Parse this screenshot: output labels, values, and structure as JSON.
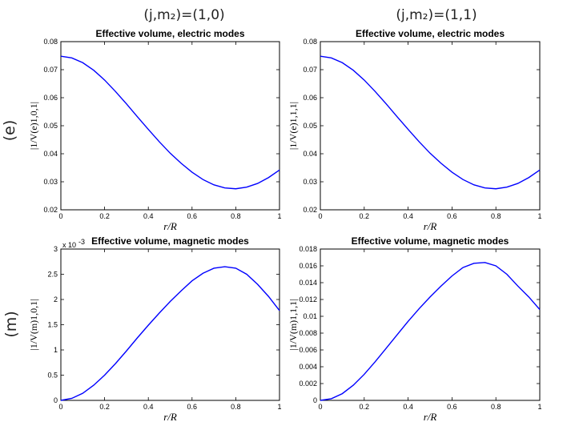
{
  "column_headers": [
    "(j,m₂)=(1,0)",
    "(j,m₂)=(1,1)"
  ],
  "row_labels": [
    "(e)",
    "(m)"
  ],
  "chart_data": [
    {
      "type": "line",
      "title": "Effective volume, electric modes",
      "xlabel": "r/R",
      "ylabel": "|1/V(e)1,0,1|",
      "xlim": [
        0,
        1
      ],
      "ylim": [
        0.02,
        0.08
      ],
      "xticks": [
        0,
        0.2,
        0.4,
        0.6,
        0.8,
        1
      ],
      "yticks": [
        0.02,
        0.03,
        0.04,
        0.05,
        0.06,
        0.07,
        0.08
      ],
      "x": [
        0,
        0.05,
        0.1,
        0.15,
        0.2,
        0.25,
        0.3,
        0.35,
        0.4,
        0.45,
        0.5,
        0.55,
        0.6,
        0.65,
        0.7,
        0.75,
        0.8,
        0.85,
        0.9,
        0.95,
        1.0
      ],
      "y": [
        0.0748,
        0.0742,
        0.0725,
        0.0698,
        0.0663,
        0.0622,
        0.0578,
        0.0532,
        0.0487,
        0.0443,
        0.0402,
        0.0366,
        0.0334,
        0.0308,
        0.0289,
        0.0278,
        0.0275,
        0.0281,
        0.0294,
        0.0315,
        0.0342
      ]
    },
    {
      "type": "line",
      "title": "Effective volume, electric modes",
      "xlabel": "r/R",
      "ylabel": "|1/V(e)1,1,1|",
      "xlim": [
        0,
        1
      ],
      "ylim": [
        0.02,
        0.08
      ],
      "xticks": [
        0,
        0.2,
        0.4,
        0.6,
        0.8,
        1
      ],
      "yticks": [
        0.02,
        0.03,
        0.04,
        0.05,
        0.06,
        0.07,
        0.08
      ],
      "x": [
        0,
        0.05,
        0.1,
        0.15,
        0.2,
        0.25,
        0.3,
        0.35,
        0.4,
        0.45,
        0.5,
        0.55,
        0.6,
        0.65,
        0.7,
        0.75,
        0.8,
        0.85,
        0.9,
        0.95,
        1.0
      ],
      "y": [
        0.0748,
        0.0742,
        0.0725,
        0.0698,
        0.0663,
        0.0622,
        0.0578,
        0.0532,
        0.0487,
        0.0443,
        0.0402,
        0.0366,
        0.0334,
        0.0308,
        0.0289,
        0.0278,
        0.0275,
        0.0281,
        0.0294,
        0.0315,
        0.0342
      ]
    },
    {
      "type": "line",
      "title": "Effective volume, magnetic modes",
      "xlabel": "r/R",
      "ylabel": "|1/V(m)1,0,1|",
      "xlim": [
        0,
        1
      ],
      "ylim": [
        0,
        3
      ],
      "xticks": [
        0,
        0.2,
        0.4,
        0.6,
        0.8,
        1
      ],
      "yticks": [
        0,
        0.5,
        1,
        1.5,
        2,
        2.5,
        3
      ],
      "y_multiplier": "x 10",
      "y_exponent": "-3",
      "x": [
        0,
        0.05,
        0.1,
        0.15,
        0.2,
        0.25,
        0.3,
        0.35,
        0.4,
        0.45,
        0.5,
        0.55,
        0.6,
        0.65,
        0.7,
        0.75,
        0.8,
        0.85,
        0.9,
        0.95,
        1.0
      ],
      "y": [
        0,
        0.04,
        0.14,
        0.3,
        0.5,
        0.73,
        0.98,
        1.24,
        1.49,
        1.73,
        1.96,
        2.17,
        2.37,
        2.52,
        2.62,
        2.65,
        2.62,
        2.5,
        2.3,
        2.06,
        1.78
      ]
    },
    {
      "type": "line",
      "title": "Effective volume, magnetic modes",
      "xlabel": "r/R",
      "ylabel": "|1/V(m)1,1,1|",
      "xlim": [
        0,
        1
      ],
      "ylim": [
        0,
        0.018
      ],
      "xticks": [
        0,
        0.2,
        0.4,
        0.6,
        0.8,
        1
      ],
      "yticks": [
        0,
        0.002,
        0.004,
        0.006,
        0.008,
        0.01,
        0.012,
        0.014,
        0.016,
        0.018
      ],
      "x": [
        0,
        0.05,
        0.1,
        0.15,
        0.2,
        0.25,
        0.3,
        0.35,
        0.4,
        0.45,
        0.5,
        0.55,
        0.6,
        0.65,
        0.7,
        0.75,
        0.8,
        0.85,
        0.9,
        0.95,
        1.0
      ],
      "y": [
        0,
        0.0002,
        0.0008,
        0.0018,
        0.0031,
        0.0046,
        0.0062,
        0.0078,
        0.0094,
        0.0109,
        0.0123,
        0.0136,
        0.0148,
        0.0158,
        0.0163,
        0.0164,
        0.016,
        0.015,
        0.0136,
        0.0123,
        0.0108
      ]
    }
  ]
}
